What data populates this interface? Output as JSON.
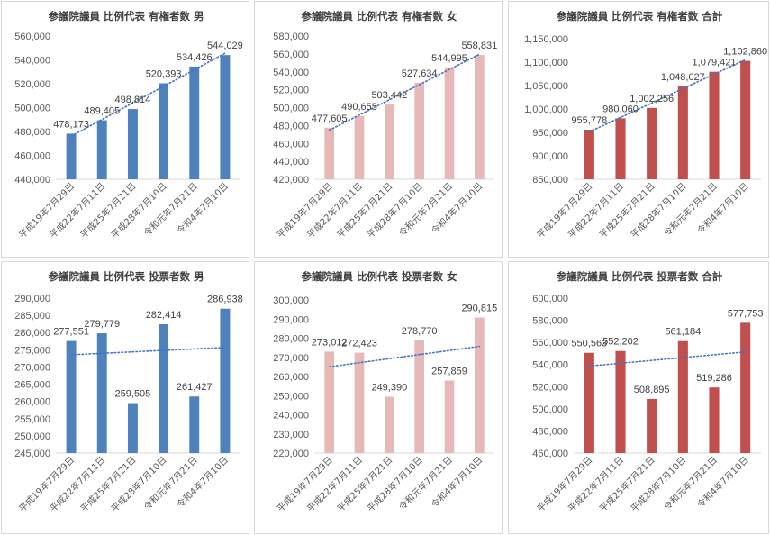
{
  "categories": [
    "平成19年7月29日",
    "平成22年7月11日",
    "平成25年7月21日",
    "平成28年7月10日",
    "令和元年7月21日",
    "令和4年7月10日"
  ],
  "chart_data": [
    {
      "type": "bar",
      "title": "参議院議員 比例代表 有権者数 男",
      "categories": [
        "平成19年7月29日",
        "平成22年7月11日",
        "平成25年7月21日",
        "平成28年7月10日",
        "令和元年7月21日",
        "令和4年7月10日"
      ],
      "values": [
        478173,
        489405,
        498814,
        520393,
        534426,
        544029
      ],
      "value_labels": [
        "478,173",
        "489,405",
        "498,814",
        "520,393",
        "534,426",
        "544,029"
      ],
      "ylim": [
        440000,
        560000
      ],
      "y_ticks": [
        440000,
        460000,
        480000,
        500000,
        520000,
        540000,
        560000
      ],
      "y_tick_labels": [
        "440,000",
        "460,000",
        "480,000",
        "500,000",
        "520,000",
        "540,000",
        "560,000"
      ],
      "color": "#4f81bd",
      "trendline": "linear, dotted",
      "grid": false,
      "legend": "none"
    },
    {
      "type": "bar",
      "title": "参議院議員 比例代表 有権者数 女",
      "categories": [
        "平成19年7月29日",
        "平成22年7月11日",
        "平成25年7月21日",
        "平成28年7月10日",
        "令和元年7月21日",
        "令和4年7月10日"
      ],
      "values": [
        477605,
        490655,
        503442,
        527634,
        544995,
        558831
      ],
      "value_labels": [
        "477,605",
        "490,655",
        "503,442",
        "527,634",
        "544,995",
        "558,831"
      ],
      "ylim": [
        420000,
        580000
      ],
      "y_ticks": [
        420000,
        440000,
        460000,
        480000,
        500000,
        520000,
        540000,
        560000,
        580000
      ],
      "y_tick_labels": [
        "420,000",
        "440,000",
        "460,000",
        "480,000",
        "500,000",
        "520,000",
        "540,000",
        "560,000",
        "580,000"
      ],
      "color": "#e6b9b8",
      "trendline": "linear, dotted",
      "grid": false,
      "legend": "none"
    },
    {
      "type": "bar",
      "title": "参議院議員 比例代表 有権者数 合計",
      "categories": [
        "平成19年7月29日",
        "平成22年7月11日",
        "平成25年7月21日",
        "平成28年7月10日",
        "令和元年7月21日",
        "令和4年7月10日"
      ],
      "values": [
        955778,
        980060,
        1002256,
        1048027,
        1079421,
        1102860
      ],
      "value_labels": [
        "955,778",
        "980,060",
        "1,002,256",
        "1,048,027",
        "1,079,421",
        "1,102,860"
      ],
      "ylim": [
        850000,
        1150000
      ],
      "y_ticks": [
        850000,
        900000,
        950000,
        1000000,
        1050000,
        1100000,
        1150000
      ],
      "y_tick_labels": [
        "850,000",
        "900,000",
        "950,000",
        "1,000,000",
        "1,050,000",
        "1,100,000",
        "1,150,000"
      ],
      "color": "#c0504d",
      "trendline": "linear, dotted",
      "grid": false,
      "legend": "none"
    },
    {
      "type": "bar",
      "title": "参議院議員 比例代表 投票者数 男",
      "categories": [
        "平成19年7月29日",
        "平成22年7月11日",
        "平成25年7月21日",
        "平成28年7月10日",
        "令和元年7月21日",
        "令和4年7月10日"
      ],
      "values": [
        277551,
        279779,
        259505,
        282414,
        261427,
        286938
      ],
      "value_labels": [
        "277,551",
        "279,779",
        "259,505",
        "282,414",
        "261,427",
        "286,938"
      ],
      "ylim": [
        245000,
        290000
      ],
      "y_ticks": [
        245000,
        250000,
        255000,
        260000,
        265000,
        270000,
        275000,
        280000,
        285000,
        290000
      ],
      "y_tick_labels": [
        "245,000",
        "250,000",
        "255,000",
        "260,000",
        "265,000",
        "270,000",
        "275,000",
        "280,000",
        "285,000",
        "290,000"
      ],
      "color": "#4f81bd",
      "trendline": "linear, dotted",
      "grid": false,
      "legend": "none"
    },
    {
      "type": "bar",
      "title": "参議院議員 比例代表 投票者数 女",
      "categories": [
        "平成19年7月29日",
        "平成22年7月11日",
        "平成25年7月21日",
        "平成28年7月10日",
        "令和元年7月21日",
        "令和4年7月10日"
      ],
      "values": [
        273012,
        272423,
        249390,
        278770,
        257859,
        290815
      ],
      "value_labels": [
        "273,012",
        "272,423",
        "249,390",
        "278,770",
        "257,859",
        "290,815"
      ],
      "ylim": [
        220000,
        300000
      ],
      "y_ticks": [
        220000,
        230000,
        240000,
        250000,
        260000,
        270000,
        280000,
        290000,
        300000
      ],
      "y_tick_labels": [
        "220,000",
        "230,000",
        "240,000",
        "250,000",
        "260,000",
        "270,000",
        "280,000",
        "290,000",
        "300,000"
      ],
      "color": "#e6b9b8",
      "trendline": "linear, dotted",
      "grid": false,
      "legend": "none"
    },
    {
      "type": "bar",
      "title": "参議院議員 比例代表 投票者数 合計",
      "categories": [
        "平成19年7月29日",
        "平成22年7月11日",
        "平成25年7月21日",
        "平成28年7月10日",
        "令和元年7月21日",
        "令和4年7月10日"
      ],
      "values": [
        550563,
        552202,
        508895,
        561184,
        519286,
        577753
      ],
      "value_labels": [
        "550,563",
        "552,202",
        "508,895",
        "561,184",
        "519,286",
        "577,753"
      ],
      "ylim": [
        460000,
        600000
      ],
      "y_ticks": [
        460000,
        480000,
        500000,
        520000,
        540000,
        560000,
        580000,
        600000
      ],
      "y_tick_labels": [
        "460,000",
        "480,000",
        "500,000",
        "520,000",
        "540,000",
        "560,000",
        "580,000",
        "600,000"
      ],
      "color": "#c0504d",
      "trendline": "linear, dotted",
      "grid": false,
      "legend": "none"
    }
  ]
}
